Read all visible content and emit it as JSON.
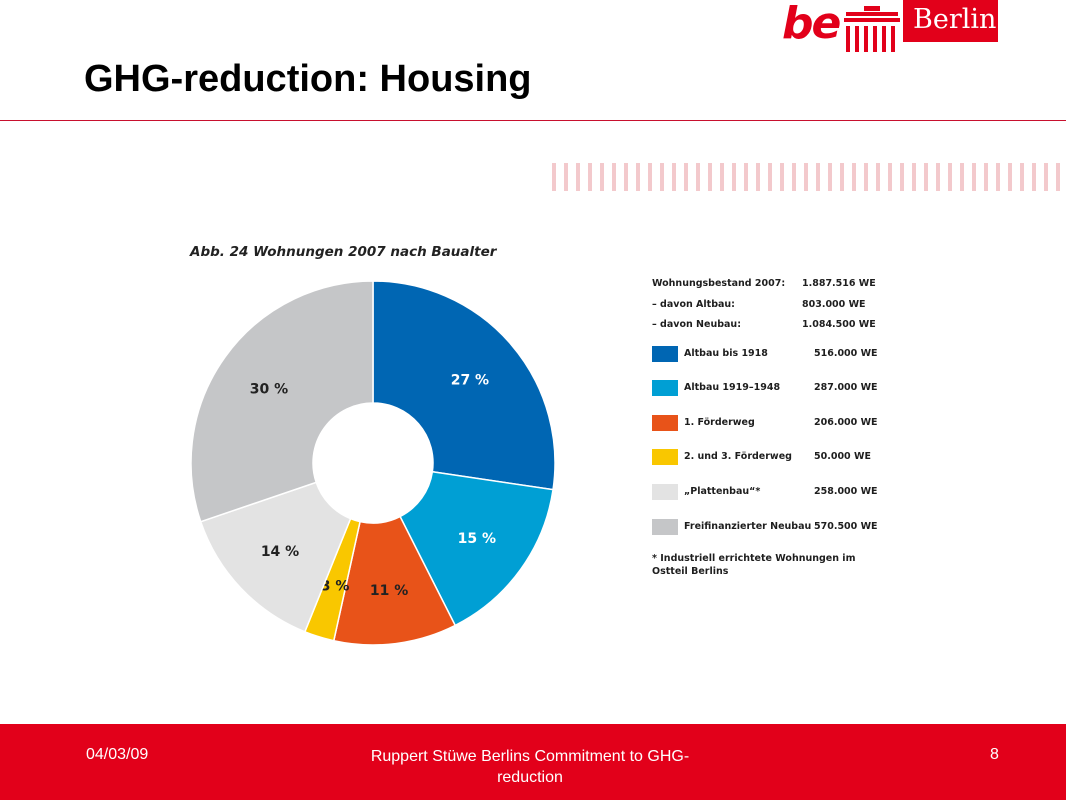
{
  "header": {
    "title": "GHG-reduction: Housing",
    "logo": {
      "be": "be",
      "name": "Berlin",
      "color": "#e2001a"
    }
  },
  "chart_data": {
    "type": "pie",
    "title": "Abb. 24  Wohnungen 2007 nach Baualter",
    "summary": [
      {
        "label": "Wohnungsbestand 2007:",
        "value": "1.887.516 WE"
      },
      {
        "label": "– davon Altbau:",
        "value": "803.000 WE"
      },
      {
        "label": "– davon Neubau:",
        "value": "1.084.500 WE"
      }
    ],
    "slices": [
      {
        "label": "Altbau bis 1918",
        "value": 516000,
        "value_text": "516.000 WE",
        "percent_label": "27 %",
        "color": "#0066b3"
      },
      {
        "label": "Altbau 1919–1948",
        "value": 287000,
        "value_text": "287.000 WE",
        "percent_label": "15 %",
        "color": "#009fd4"
      },
      {
        "label": "1. Förderweg",
        "value": 206000,
        "value_text": "206.000 WE",
        "percent_label": "11 %",
        "color": "#e85319"
      },
      {
        "label": "2. und 3. Förderweg",
        "value": 50000,
        "value_text": "50.000 WE",
        "percent_label": "3 %",
        "color": "#f9c700"
      },
      {
        "label": "„Plattenbau“*",
        "value": 258000,
        "value_text": "258.000 WE",
        "percent_label": "14 %",
        "color": "#e3e3e3"
      },
      {
        "label": "Freifinanzierter Neubau",
        "value": 570500,
        "value_text": "570.500 WE",
        "percent_label": "30 %",
        "color": "#c5c6c8"
      }
    ],
    "footnote": "* Industriell errichtete Wohnungen im Ostteil Berlins"
  },
  "footer": {
    "date": "04/03/09",
    "center": "Ruppert Stüwe Berlins Commitment to GHG-reduction",
    "page": "8"
  }
}
